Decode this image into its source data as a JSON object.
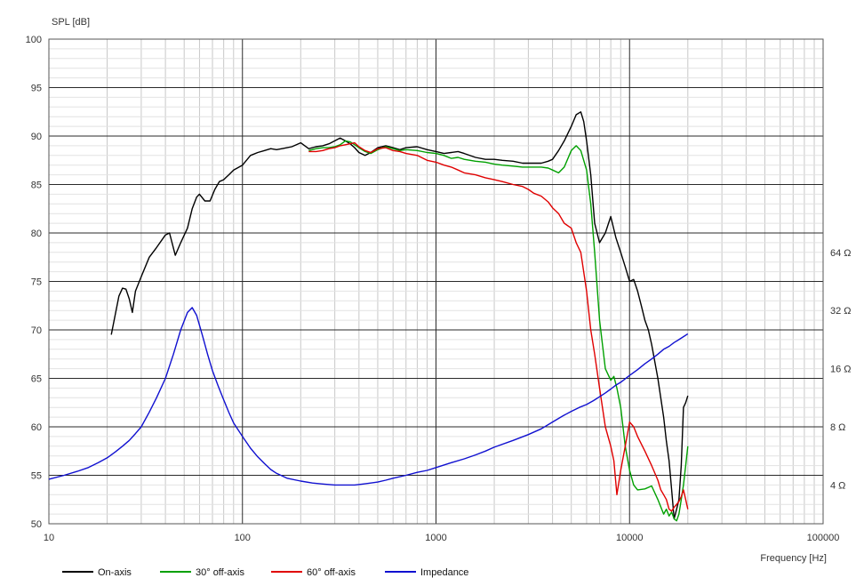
{
  "chart_data": {
    "type": "line",
    "ylabel": "SPL [dB]",
    "xlabel": "Frequency [Hz]",
    "x_scale": "log",
    "xlim": [
      10,
      100000
    ],
    "ylim": [
      50,
      100
    ],
    "grid": true,
    "legend_position": "bottom",
    "x_tick_labels": [
      "10",
      "100",
      "1000",
      "10000",
      "100000"
    ],
    "y_tick_labels": [
      "50",
      "55",
      "60",
      "65",
      "70",
      "75",
      "80",
      "85",
      "90",
      "95",
      "100"
    ],
    "right_axis_tick_labels": [
      {
        "label": "4 Ω",
        "at_left_db": 54
      },
      {
        "label": "8 Ω",
        "at_left_db": 60
      },
      {
        "label": "16 Ω",
        "at_left_db": 66
      },
      {
        "label": "32 Ω",
        "at_left_db": 72
      },
      {
        "label": "64 Ω",
        "at_left_db": 78
      }
    ],
    "series": [
      {
        "name": "On-axis",
        "color": "#000000",
        "x": [
          21,
          23,
          24,
          25,
          26,
          27,
          28,
          30,
          33,
          36,
          40,
          42,
          45,
          48,
          52,
          55,
          58,
          60,
          64,
          68,
          72,
          76,
          80,
          85,
          90,
          100,
          110,
          120,
          130,
          140,
          150,
          160,
          170,
          180,
          200,
          220,
          240,
          260,
          280,
          300,
          320,
          340,
          360,
          380,
          400,
          430,
          460,
          500,
          550,
          600,
          650,
          700,
          800,
          900,
          1000,
          1100,
          1200,
          1300,
          1400,
          1600,
          1800,
          2000,
          2200,
          2500,
          2800,
          3000,
          3200,
          3500,
          3800,
          4000,
          4300,
          4600,
          5000,
          5300,
          5600,
          5800,
          6000,
          6300,
          6600,
          7000,
          7500,
          8000,
          8500,
          9000,
          9500,
          10000,
          10500,
          11000,
          11500,
          12000,
          12500,
          13000,
          14000,
          15000,
          15500,
          16000,
          16500,
          17000,
          17500,
          18000,
          18500,
          19000,
          19500,
          20000
        ],
        "y": [
          69.5,
          73.5,
          74.3,
          74.2,
          73.2,
          71.8,
          74,
          75.5,
          77.5,
          78.5,
          79.8,
          80,
          77.7,
          79,
          80.5,
          82.5,
          83.7,
          84,
          83.3,
          83.3,
          84.5,
          85.3,
          85.5,
          86,
          86.5,
          87,
          88,
          88.3,
          88.5,
          88.7,
          88.6,
          88.7,
          88.8,
          88.9,
          89.3,
          88.7,
          88.9,
          89,
          89.2,
          89.5,
          89.8,
          89.5,
          89.2,
          88.8,
          88.3,
          88,
          88.3,
          88.8,
          89,
          88.8,
          88.6,
          88.8,
          88.9,
          88.6,
          88.4,
          88.2,
          88.3,
          88.4,
          88.2,
          87.8,
          87.6,
          87.6,
          87.5,
          87.4,
          87.2,
          87.2,
          87.2,
          87.2,
          87.4,
          87.6,
          88.5,
          89.5,
          91,
          92.2,
          92.5,
          91.5,
          89.5,
          86,
          81,
          79,
          80,
          81.7,
          79.5,
          78,
          76.5,
          75,
          75.2,
          74,
          72.5,
          71,
          70,
          68.5,
          65,
          61,
          58.5,
          56.5,
          53.5,
          50.5,
          51.5,
          52.5,
          56,
          62,
          62.5,
          63.2
        ]
      },
      {
        "name": "30° off-axis",
        "color": "#00a000",
        "x": [
          220,
          240,
          260,
          280,
          300,
          320,
          340,
          360,
          380,
          400,
          430,
          460,
          500,
          550,
          600,
          650,
          700,
          800,
          900,
          1000,
          1100,
          1200,
          1300,
          1400,
          1600,
          1800,
          2000,
          2200,
          2500,
          2800,
          3000,
          3200,
          3500,
          3800,
          4000,
          4300,
          4600,
          5000,
          5300,
          5600,
          6000,
          6300,
          6600,
          7000,
          7500,
          8000,
          8300,
          8600,
          9000,
          9500,
          10000,
          10500,
          11000,
          12000,
          13000,
          14000,
          15000,
          15500,
          16000,
          16500,
          17000,
          17500,
          18000,
          18500,
          19000,
          19500,
          20000
        ],
        "y": [
          88.5,
          88.7,
          88.8,
          88.8,
          88.9,
          89.1,
          89.5,
          89.4,
          89.1,
          88.8,
          88.4,
          88.2,
          88.6,
          88.9,
          88.7,
          88.5,
          88.6,
          88.5,
          88.3,
          88.2,
          88,
          87.7,
          87.8,
          87.6,
          87.4,
          87.3,
          87.1,
          87,
          86.9,
          86.8,
          86.8,
          86.8,
          86.8,
          86.7,
          86.5,
          86.2,
          86.8,
          88.5,
          89,
          88.5,
          86.5,
          83,
          78,
          71,
          66,
          64.8,
          65.2,
          64,
          62,
          58,
          55.5,
          54,
          53.5,
          53.6,
          53.9,
          52.5,
          51,
          51.5,
          50.8,
          51.2,
          50.5,
          50.3,
          51,
          52.5,
          54,
          56,
          58
        ]
      },
      {
        "name": "60° off-axis",
        "color": "#e00000",
        "x": [
          220,
          240,
          260,
          280,
          300,
          320,
          340,
          360,
          380,
          400,
          430,
          460,
          500,
          550,
          600,
          650,
          700,
          800,
          900,
          1000,
          1100,
          1200,
          1300,
          1400,
          1600,
          1800,
          2000,
          2200,
          2500,
          2800,
          3000,
          3200,
          3500,
          3800,
          4000,
          4300,
          4600,
          5000,
          5300,
          5600,
          6000,
          6300,
          6600,
          7000,
          7500,
          8000,
          8300,
          8600,
          9000,
          9500,
          10000,
          10500,
          11000,
          12000,
          13000,
          14000,
          14500,
          15000,
          15500,
          16000,
          16500,
          17000,
          17500,
          18000,
          18500,
          19000,
          19500,
          20000
        ],
        "y": [
          88.4,
          88.4,
          88.5,
          88.7,
          88.8,
          89,
          89.1,
          89.2,
          89.3,
          88.9,
          88.5,
          88.3,
          88.7,
          88.8,
          88.5,
          88.4,
          88.2,
          88,
          87.5,
          87.3,
          87,
          86.8,
          86.5,
          86.2,
          86,
          85.7,
          85.5,
          85.3,
          85,
          84.8,
          84.5,
          84.1,
          83.8,
          83.2,
          82.6,
          82,
          81,
          80.5,
          79,
          78,
          74,
          70,
          67.5,
          64,
          60,
          58,
          56.5,
          53,
          55.5,
          58,
          60.5,
          60,
          59,
          57.5,
          56,
          54.5,
          53.5,
          53,
          52.5,
          51.5,
          51.3,
          51.7,
          52,
          52.3,
          52.8,
          53.5,
          52.5,
          51.5
        ]
      },
      {
        "name": "Impedance",
        "color": "#1010d0",
        "x": [
          10,
          12,
          14,
          16,
          18,
          20,
          22,
          24,
          26,
          28,
          30,
          33,
          36,
          40,
          44,
          48,
          52,
          55,
          58,
          62,
          66,
          70,
          75,
          80,
          85,
          90,
          100,
          110,
          120,
          130,
          140,
          150,
          170,
          200,
          230,
          260,
          300,
          340,
          380,
          420,
          460,
          500,
          550,
          600,
          700,
          800,
          900,
          1000,
          1200,
          1400,
          1600,
          1800,
          2000,
          2500,
          3000,
          3500,
          4000,
          4500,
          5000,
          5500,
          6000,
          6500,
          7000,
          7500,
          8000,
          8500,
          9000,
          10000,
          11000,
          12000,
          13000,
          14000,
          15000,
          16000,
          17000,
          18000,
          19000,
          20000
        ],
        "y": [
          54.6,
          55.0,
          55.4,
          55.8,
          56.3,
          56.8,
          57.4,
          58,
          58.6,
          59.3,
          60,
          61.5,
          63,
          65,
          67.5,
          70,
          71.8,
          72.3,
          71.5,
          69.5,
          67.5,
          65.8,
          64.2,
          62.8,
          61.5,
          60.4,
          59,
          57.8,
          56.9,
          56.2,
          55.6,
          55.2,
          54.7,
          54.4,
          54.2,
          54.1,
          54,
          54,
          54,
          54.1,
          54.2,
          54.3,
          54.5,
          54.7,
          55,
          55.3,
          55.5,
          55.8,
          56.3,
          56.7,
          57.1,
          57.5,
          57.9,
          58.6,
          59.2,
          59.8,
          60.5,
          61.1,
          61.6,
          62,
          62.3,
          62.7,
          63.1,
          63.5,
          63.9,
          64.3,
          64.6,
          65.3,
          65.9,
          66.5,
          67,
          67.5,
          68,
          68.3,
          68.7,
          69,
          69.3,
          69.6
        ]
      }
    ]
  }
}
